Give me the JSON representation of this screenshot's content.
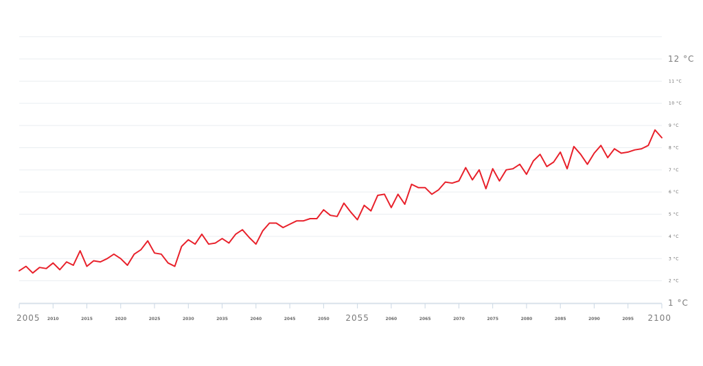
{
  "chart_data": {
    "type": "line",
    "xlim": [
      2005,
      2100
    ],
    "ylim": [
      1,
      13
    ],
    "y_ticks": [
      {
        "value": 1,
        "label": "1 °C",
        "major": true
      },
      {
        "value": 2,
        "label": "2 °C",
        "major": false
      },
      {
        "value": 3,
        "label": "3 °C",
        "major": false
      },
      {
        "value": 4,
        "label": "4 °C",
        "major": false
      },
      {
        "value": 5,
        "label": "5 °C",
        "major": false
      },
      {
        "value": 6,
        "label": "6 °C",
        "major": false
      },
      {
        "value": 7,
        "label": "7 °C",
        "major": false
      },
      {
        "value": 8,
        "label": "8 °C",
        "major": false
      },
      {
        "value": 9,
        "label": "9 °C",
        "major": false
      },
      {
        "value": 10,
        "label": "10 °C",
        "major": false
      },
      {
        "value": 11,
        "label": "11 °C",
        "major": false
      },
      {
        "value": 12,
        "label": "12 °C",
        "major": true
      }
    ],
    "x_ticks": [
      {
        "value": 2005,
        "label": "2005",
        "major": true
      },
      {
        "value": 2010,
        "label": "2010",
        "major": false
      },
      {
        "value": 2015,
        "label": "2015",
        "major": false
      },
      {
        "value": 2020,
        "label": "2020",
        "major": false
      },
      {
        "value": 2025,
        "label": "2025",
        "major": false
      },
      {
        "value": 2030,
        "label": "2030",
        "major": false
      },
      {
        "value": 2035,
        "label": "2035",
        "major": false
      },
      {
        "value": 2040,
        "label": "2040",
        "major": false
      },
      {
        "value": 2045,
        "label": "2045",
        "major": false
      },
      {
        "value": 2050,
        "label": "2050",
        "major": false
      },
      {
        "value": 2055,
        "label": "2055",
        "major": true
      },
      {
        "value": 2060,
        "label": "2060",
        "major": false
      },
      {
        "value": 2065,
        "label": "2065",
        "major": false
      },
      {
        "value": 2070,
        "label": "2070",
        "major": false
      },
      {
        "value": 2075,
        "label": "2075",
        "major": false
      },
      {
        "value": 2080,
        "label": "2080",
        "major": false
      },
      {
        "value": 2085,
        "label": "2085",
        "major": false
      },
      {
        "value": 2090,
        "label": "2090",
        "major": false
      },
      {
        "value": 2095,
        "label": "2095",
        "major": false
      },
      {
        "value": 2100,
        "label": "2100",
        "major": true
      }
    ],
    "grid": true,
    "series": [
      {
        "color": "#e8202a",
        "x": [
          2005,
          2006,
          2007,
          2008,
          2009,
          2010,
          2011,
          2012,
          2013,
          2014,
          2015,
          2016,
          2017,
          2018,
          2019,
          2020,
          2021,
          2022,
          2023,
          2024,
          2025,
          2026,
          2027,
          2028,
          2029,
          2030,
          2031,
          2032,
          2033,
          2034,
          2035,
          2036,
          2037,
          2038,
          2039,
          2040,
          2041,
          2042,
          2043,
          2044,
          2045,
          2046,
          2047,
          2048,
          2049,
          2050,
          2051,
          2052,
          2053,
          2054,
          2055,
          2056,
          2057,
          2058,
          2059,
          2060,
          2061,
          2062,
          2063,
          2064,
          2065,
          2066,
          2067,
          2068,
          2069,
          2070,
          2071,
          2072,
          2073,
          2074,
          2075,
          2076,
          2077,
          2078,
          2079,
          2080,
          2081,
          2082,
          2083,
          2084,
          2085,
          2086,
          2087,
          2088,
          2089,
          2090,
          2091,
          2092,
          2093,
          2094,
          2095,
          2096,
          2097,
          2098,
          2099,
          2100
        ],
        "values": [
          2.45,
          2.65,
          2.35,
          2.6,
          2.55,
          2.8,
          2.5,
          2.85,
          2.7,
          3.35,
          2.65,
          2.9,
          2.85,
          3.0,
          3.2,
          3.0,
          2.7,
          3.2,
          3.4,
          3.8,
          3.25,
          3.2,
          2.8,
          2.65,
          3.55,
          3.85,
          3.65,
          4.1,
          3.65,
          3.7,
          3.9,
          3.7,
          4.1,
          4.3,
          3.95,
          3.65,
          4.25,
          4.6,
          4.6,
          4.4,
          4.55,
          4.7,
          4.7,
          4.8,
          4.8,
          5.2,
          4.95,
          4.9,
          5.5,
          5.1,
          4.75,
          5.4,
          5.15,
          5.85,
          5.9,
          5.3,
          5.9,
          5.45,
          6.35,
          6.2,
          6.2,
          5.9,
          6.1,
          6.45,
          6.4,
          6.5,
          7.1,
          6.55,
          7.0,
          6.15,
          7.05,
          6.5,
          7.0,
          7.05,
          7.25,
          6.8,
          7.4,
          7.7,
          7.15,
          7.35,
          7.8,
          7.05,
          8.05,
          7.7,
          7.25,
          7.75,
          8.1,
          7.55,
          7.95,
          7.75,
          7.8,
          7.9,
          7.95,
          8.1,
          8.8,
          8.45
        ]
      }
    ]
  }
}
